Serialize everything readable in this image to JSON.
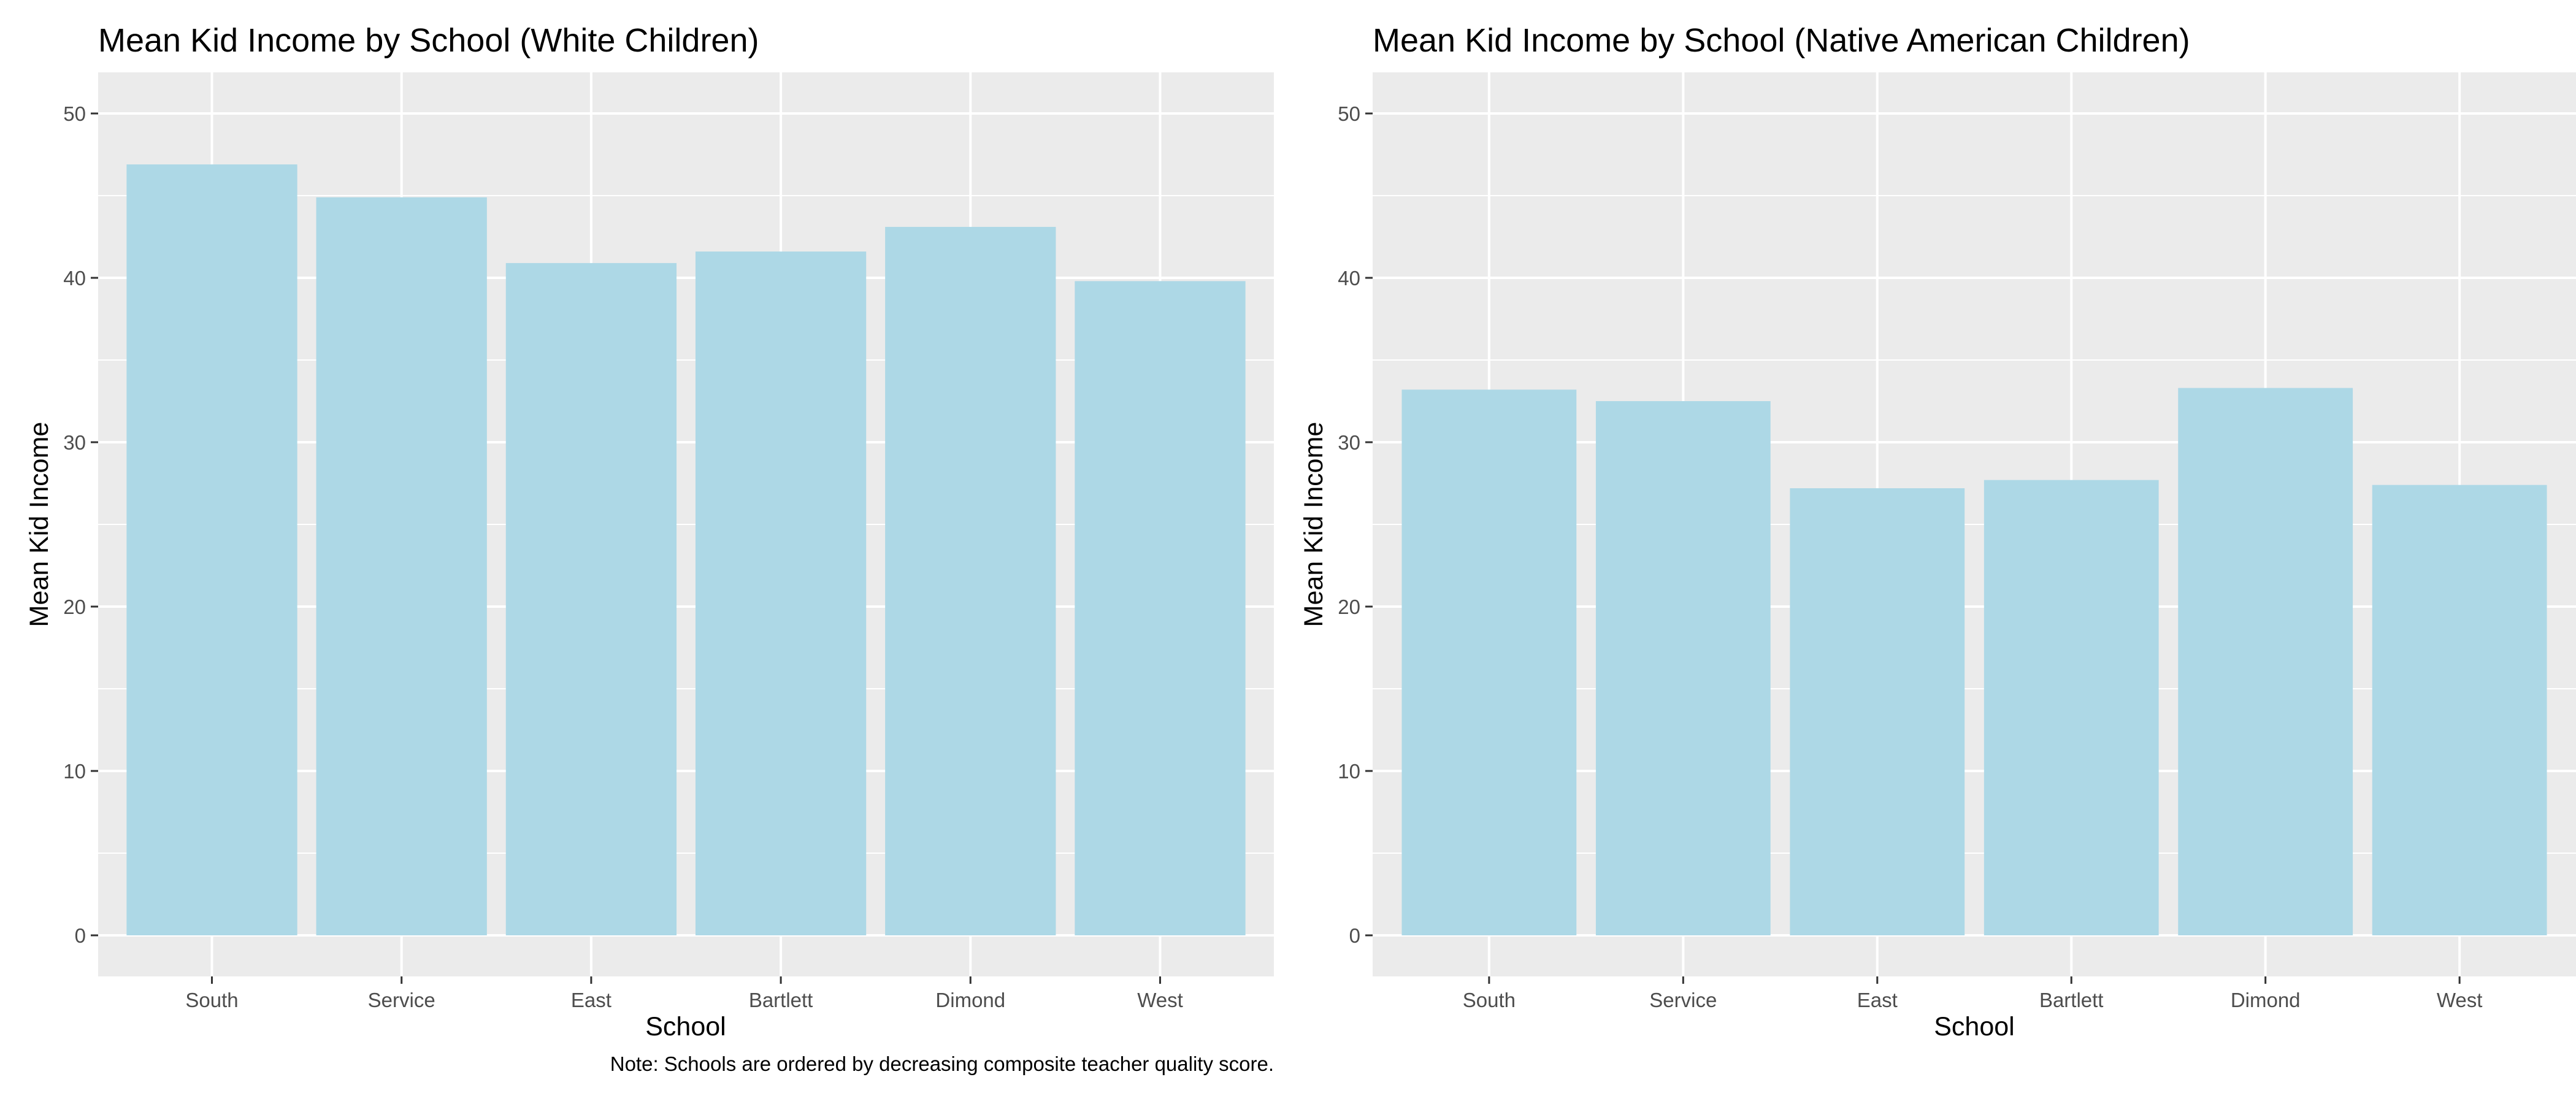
{
  "caption": "Note: Schools are ordered by decreasing composite teacher quality score.",
  "colors": {
    "bar_fill": "#add8e6",
    "panel_background": "#ebebeb",
    "grid_major": "#ffffff",
    "tick_mark": "#333333",
    "tick_label": "#4d4d4d"
  },
  "chart_data": [
    {
      "type": "bar",
      "title": "Mean Kid Income by School (White Children)",
      "xlabel": "School",
      "ylabel": "Mean Kid Income",
      "categories": [
        "South",
        "Service",
        "East",
        "Bartlett",
        "Dimond",
        "West"
      ],
      "values": [
        46.9,
        44.9,
        40.9,
        41.6,
        43.1,
        39.8
      ],
      "ylim": [
        -2.5,
        52.5
      ],
      "yticks": [
        0,
        10,
        20,
        30,
        40,
        50
      ],
      "ytick_labels": [
        "0",
        "10",
        "20",
        "30",
        "40",
        "50"
      ],
      "grid": true,
      "legend": "none"
    },
    {
      "type": "bar",
      "title": "Mean Kid Income by School (Native American Children)",
      "xlabel": "School",
      "ylabel": "Mean Kid Income",
      "categories": [
        "South",
        "Service",
        "East",
        "Bartlett",
        "Dimond",
        "West"
      ],
      "values": [
        33.2,
        32.5,
        27.2,
        27.7,
        33.3,
        27.4
      ],
      "ylim": [
        -2.5,
        52.5
      ],
      "yticks": [
        0,
        10,
        20,
        30,
        40,
        50
      ],
      "ytick_labels": [
        "0",
        "10",
        "20",
        "30",
        "40",
        "50"
      ],
      "grid": true,
      "legend": "none"
    }
  ]
}
